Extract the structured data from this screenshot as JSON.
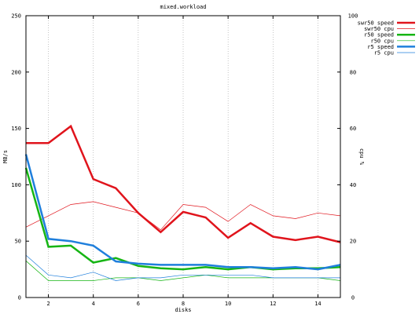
{
  "chart_data": {
    "type": "line",
    "title": "mixed.workload",
    "xlabel": "disks",
    "ylabel": "MB/s",
    "y2label": "cpu %",
    "xlim": [
      1,
      15
    ],
    "ylim": [
      0,
      250
    ],
    "y2lim": [
      0,
      100
    ],
    "x_ticks": [
      2,
      4,
      6,
      8,
      10,
      12,
      14
    ],
    "y_ticks": [
      0,
      50,
      100,
      150,
      200,
      250
    ],
    "y2_ticks": [
      0,
      20,
      40,
      60,
      80,
      100
    ],
    "grid": "vertical-dotted",
    "legend_position": "top-right",
    "series": [
      {
        "name": "swr50 speed",
        "axis": "left",
        "color": "#e0141c",
        "width": 2.5,
        "x": [
          1,
          2,
          3,
          4,
          5,
          6,
          7,
          8,
          9,
          10,
          11,
          12,
          13,
          14,
          15
        ],
        "values": [
          137,
          137,
          152,
          105,
          97,
          75,
          58,
          76,
          71,
          53,
          66,
          54,
          51,
          54,
          49
        ]
      },
      {
        "name": "swr50 cpu",
        "axis": "right",
        "color": "#e0141c",
        "width": 0.7,
        "x": [
          1,
          2,
          3,
          4,
          5,
          6,
          7,
          8,
          9,
          10,
          11,
          12,
          13,
          14,
          15
        ],
        "values": [
          25,
          29,
          33,
          34,
          32,
          30,
          24,
          33,
          32,
          27,
          33,
          29,
          28,
          30,
          29
        ]
      },
      {
        "name": "r50 speed",
        "axis": "left",
        "color": "#16b514",
        "width": 2.5,
        "x": [
          1,
          2,
          3,
          4,
          5,
          6,
          7,
          8,
          9,
          10,
          11,
          12,
          13,
          14,
          15
        ],
        "values": [
          115,
          45,
          46,
          31,
          35,
          28,
          26,
          25,
          27,
          25,
          27,
          25,
          26,
          26,
          27
        ]
      },
      {
        "name": "r50 cpu",
        "axis": "right",
        "color": "#16b514",
        "width": 0.7,
        "x": [
          1,
          2,
          3,
          4,
          5,
          6,
          7,
          8,
          9,
          10,
          11,
          12,
          13,
          14,
          15
        ],
        "values": [
          13,
          6,
          6,
          6,
          7,
          7,
          6,
          7,
          8,
          7,
          7,
          7,
          7,
          7,
          6
        ]
      },
      {
        "name": "r5 speed",
        "axis": "left",
        "color": "#1f7fdc",
        "width": 2.5,
        "x": [
          1,
          2,
          3,
          4,
          5,
          6,
          7,
          8,
          9,
          10,
          11,
          12,
          13,
          14,
          15
        ],
        "values": [
          127,
          52,
          50,
          46,
          32,
          30,
          29,
          29,
          29,
          27,
          27,
          26,
          27,
          25,
          29
        ]
      },
      {
        "name": "r5 cpu",
        "axis": "right",
        "color": "#1f7fdc",
        "width": 0.7,
        "x": [
          1,
          2,
          3,
          4,
          5,
          6,
          7,
          8,
          9,
          10,
          11,
          12,
          13,
          14,
          15
        ],
        "values": [
          15,
          8,
          7,
          9,
          6,
          7,
          7,
          8,
          8,
          8,
          8,
          7,
          7,
          7,
          7
        ]
      }
    ]
  }
}
